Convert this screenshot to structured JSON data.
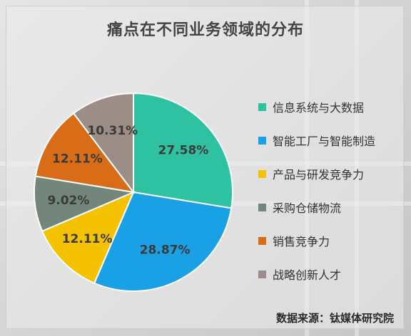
{
  "title": "痛点在不同业务领域的分布",
  "source": "数据来源：钛媒体研究院",
  "chart_data": {
    "type": "pie",
    "title": "痛点在不同业务领域的分布",
    "start_angle_deg": 0,
    "direction": "clockwise",
    "categories": [
      "信息系统与大数据",
      "智能工厂与智能制造",
      "产品与研发竞争力",
      "采购仓储物流",
      "销售竞争力",
      "战略创新人才"
    ],
    "values": [
      27.58,
      28.87,
      12.11,
      9.02,
      12.11,
      10.31
    ],
    "labels": [
      "27.58%",
      "28.87%",
      "12.11%",
      "9.02%",
      "12.11%",
      "10.31%"
    ],
    "colors": [
      "#2fc2a2",
      "#1aa0e4",
      "#f5c200",
      "#74857b",
      "#d96c16",
      "#9c8d87"
    ],
    "legend_position": "right"
  },
  "legend": [
    {
      "label": "信息系统与大数据",
      "color": "#2fc2a2"
    },
    {
      "label": "智能工厂与智能制造",
      "color": "#1aa0e4"
    },
    {
      "label": "产品与研发竞争力",
      "color": "#f5c200"
    },
    {
      "label": "采购仓储物流",
      "color": "#74857b"
    },
    {
      "label": "销售竞争力",
      "color": "#d96c16"
    },
    {
      "label": "战略创新人才",
      "color": "#9c8d87"
    }
  ]
}
